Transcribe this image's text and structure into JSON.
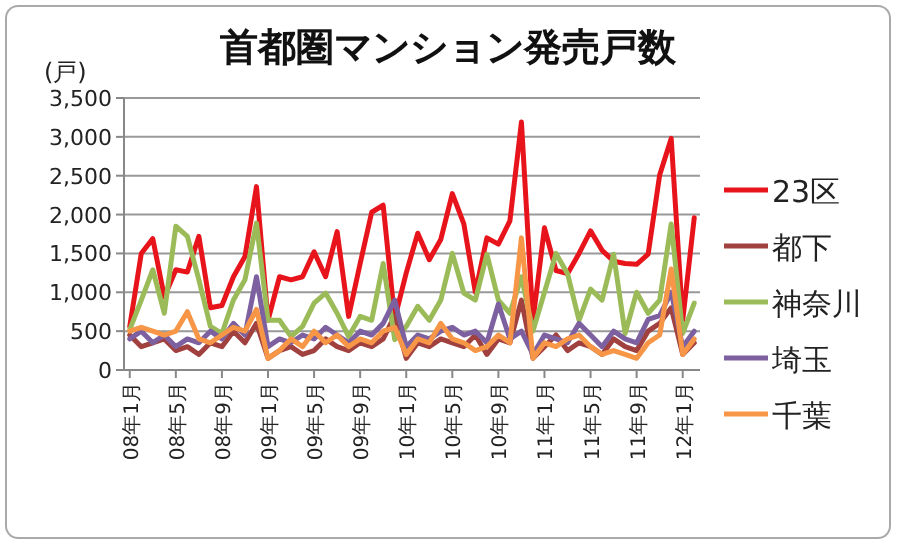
{
  "chart_data": {
    "type": "line",
    "title": "首都圏マンション発売戸数",
    "ylabel": "(戸)",
    "categories": [
      "08年1月",
      null,
      null,
      null,
      "08年5月",
      null,
      null,
      null,
      "08年9月",
      null,
      null,
      null,
      "09年1月",
      null,
      null,
      null,
      "09年5月",
      null,
      null,
      null,
      "09年9月",
      null,
      null,
      null,
      "10年1月",
      null,
      null,
      null,
      "10年5月",
      null,
      null,
      null,
      "10年9月",
      null,
      null,
      null,
      "11年1月",
      null,
      null,
      null,
      "11年5月",
      null,
      null,
      null,
      "11年9月",
      null,
      null,
      null,
      "12年1月",
      null
    ],
    "series": [
      {
        "name": "23区",
        "color": "#e8141b",
        "values": [
          560,
          1500,
          1690,
          940,
          1290,
          1260,
          1720,
          800,
          830,
          1200,
          1460,
          2360,
          640,
          1200,
          1160,
          1200,
          1520,
          1200,
          1780,
          690,
          1370,
          2030,
          2120,
          660,
          1250,
          1760,
          1420,
          1680,
          2270,
          1880,
          1000,
          1700,
          1620,
          1920,
          3190,
          640,
          1830,
          1280,
          1240,
          1500,
          1790,
          1540,
          1400,
          1370,
          1360,
          1490,
          2510,
          2980,
          640,
          1960
        ]
      },
      {
        "name": "都下",
        "color": "#a0413f",
        "values": [
          450,
          300,
          350,
          400,
          250,
          300,
          200,
          350,
          300,
          500,
          350,
          600,
          150,
          250,
          300,
          200,
          250,
          400,
          300,
          250,
          350,
          300,
          400,
          700,
          150,
          350,
          300,
          400,
          350,
          300,
          450,
          200,
          400,
          350,
          900,
          150,
          300,
          450,
          250,
          350,
          300,
          200,
          400,
          300,
          250,
          500,
          600,
          800,
          200,
          350
        ]
      },
      {
        "name": "神奈川",
        "color": "#9bbb59",
        "values": [
          520,
          900,
          1290,
          730,
          1850,
          1720,
          1160,
          560,
          470,
          900,
          1160,
          1890,
          640,
          640,
          430,
          560,
          860,
          990,
          730,
          430,
          690,
          640,
          1370,
          390,
          560,
          820,
          640,
          900,
          1500,
          990,
          900,
          1490,
          900,
          730,
          1200,
          500,
          1000,
          1500,
          1240,
          640,
          1040,
          900,
          1490,
          470,
          1000,
          730,
          900,
          1880,
          470,
          860
        ]
      },
      {
        "name": "埼玉",
        "color": "#7d60a0",
        "values": [
          400,
          500,
          350,
          450,
          300,
          400,
          350,
          500,
          400,
          600,
          450,
          1200,
          300,
          400,
          350,
          450,
          400,
          550,
          450,
          350,
          500,
          450,
          600,
          900,
          300,
          450,
          400,
          500,
          550,
          450,
          500,
          350,
          850,
          400,
          500,
          200,
          450,
          400,
          350,
          600,
          450,
          300,
          500,
          400,
          350,
          650,
          700,
          1000,
          300,
          500
        ]
      },
      {
        "name": "千葉",
        "color": "#f79646",
        "values": [
          500,
          550,
          500,
          450,
          500,
          750,
          400,
          350,
          450,
          550,
          500,
          780,
          150,
          250,
          400,
          300,
          500,
          350,
          450,
          300,
          400,
          350,
          500,
          550,
          200,
          400,
          350,
          600,
          400,
          350,
          250,
          300,
          450,
          350,
          1700,
          150,
          350,
          300,
          400,
          450,
          300,
          200,
          250,
          200,
          150,
          350,
          450,
          1300,
          200,
          400
        ]
      }
    ],
    "ylim": [
      0,
      3500
    ],
    "yticks": [
      {
        "value": 0,
        "label": "0"
      },
      {
        "value": 500,
        "label": "500"
      },
      {
        "value": 1000,
        "label": "1,000"
      },
      {
        "value": 1500,
        "label": "1,500"
      },
      {
        "value": 2000,
        "label": "2,000"
      },
      {
        "value": 2500,
        "label": "2,500"
      },
      {
        "value": 3000,
        "label": "3,000"
      },
      {
        "value": 3500,
        "label": "3,500"
      }
    ],
    "grid": "y",
    "legend": "right"
  }
}
